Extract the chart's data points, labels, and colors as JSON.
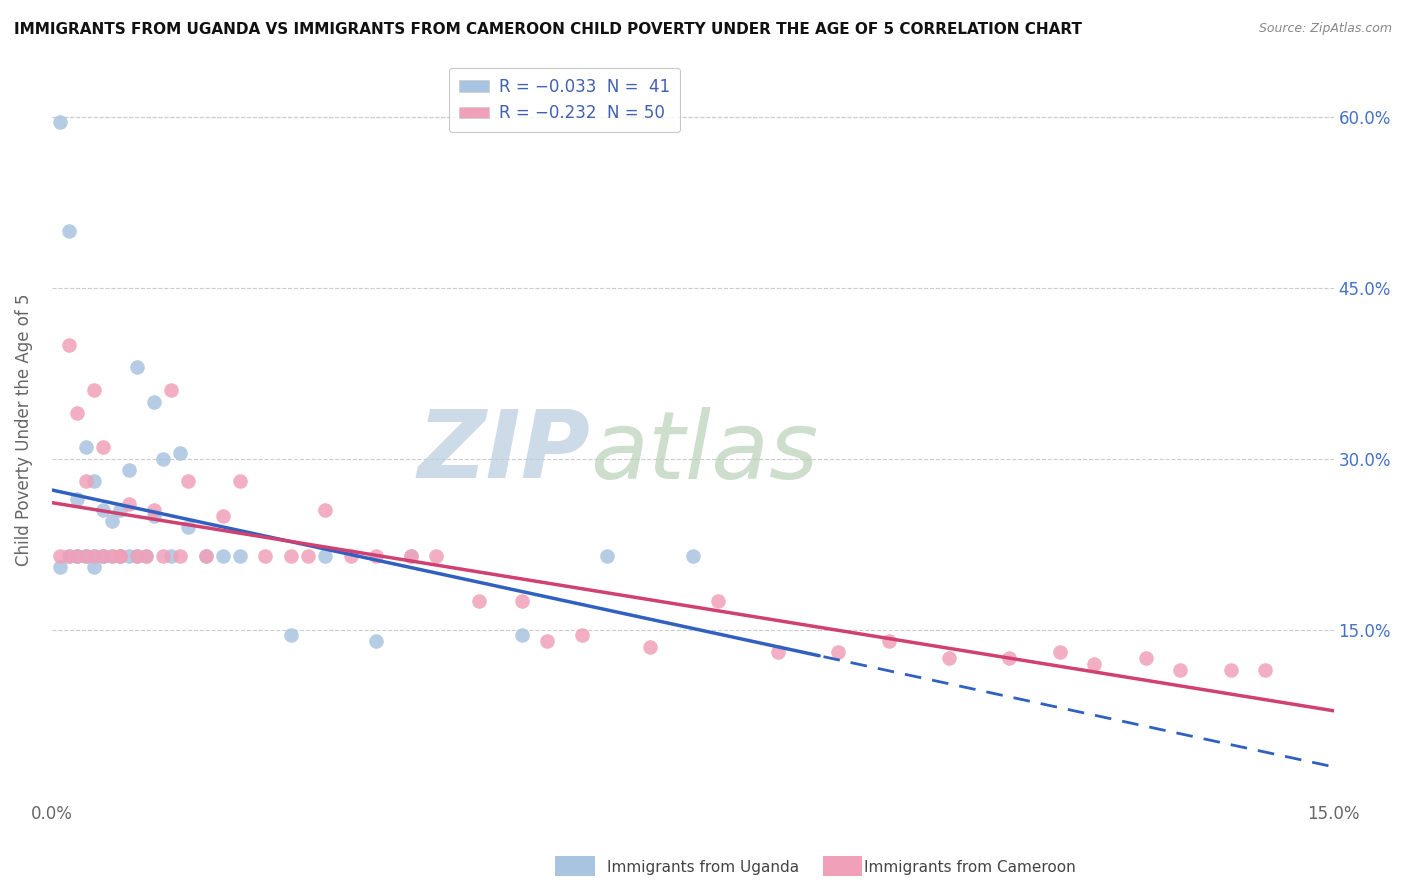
{
  "title": "IMMIGRANTS FROM UGANDA VS IMMIGRANTS FROM CAMEROON CHILD POVERTY UNDER THE AGE OF 5 CORRELATION CHART",
  "source": "Source: ZipAtlas.com",
  "ylabel": "Child Poverty Under the Age of 5",
  "xlim": [
    0.0,
    0.15
  ],
  "ylim": [
    0.0,
    0.65
  ],
  "color_uganda": "#a8c4e0",
  "color_cameroon": "#f0a0b8",
  "trendline_uganda_color": "#3060c0",
  "trendline_cameroon_color": "#d04070",
  "watermark_zip": "ZIP",
  "watermark_atlas": "atlas",
  "watermark_color_zip": "#b8cce0",
  "watermark_color_atlas": "#b8d0b8",
  "background_color": "#ffffff",
  "uganda_x": [
    0.001,
    0.001,
    0.002,
    0.002,
    0.003,
    0.003,
    0.003,
    0.004,
    0.004,
    0.004,
    0.005,
    0.005,
    0.005,
    0.006,
    0.006,
    0.006,
    0.007,
    0.007,
    0.008,
    0.008,
    0.009,
    0.009,
    0.01,
    0.01,
    0.011,
    0.012,
    0.012,
    0.013,
    0.014,
    0.015,
    0.016,
    0.018,
    0.02,
    0.022,
    0.028,
    0.032,
    0.038,
    0.042,
    0.055,
    0.065,
    0.075
  ],
  "uganda_y": [
    0.595,
    0.205,
    0.5,
    0.215,
    0.215,
    0.215,
    0.265,
    0.215,
    0.215,
    0.31,
    0.205,
    0.215,
    0.28,
    0.215,
    0.215,
    0.255,
    0.215,
    0.245,
    0.215,
    0.255,
    0.215,
    0.29,
    0.215,
    0.38,
    0.215,
    0.35,
    0.25,
    0.3,
    0.215,
    0.305,
    0.24,
    0.215,
    0.215,
    0.215,
    0.145,
    0.215,
    0.14,
    0.215,
    0.145,
    0.215,
    0.215
  ],
  "cameroon_x": [
    0.001,
    0.002,
    0.002,
    0.003,
    0.003,
    0.004,
    0.004,
    0.005,
    0.005,
    0.006,
    0.006,
    0.007,
    0.008,
    0.008,
    0.009,
    0.01,
    0.011,
    0.012,
    0.013,
    0.014,
    0.015,
    0.016,
    0.018,
    0.02,
    0.022,
    0.025,
    0.028,
    0.03,
    0.032,
    0.035,
    0.038,
    0.042,
    0.045,
    0.05,
    0.055,
    0.058,
    0.062,
    0.07,
    0.078,
    0.085,
    0.092,
    0.098,
    0.105,
    0.112,
    0.118,
    0.122,
    0.128,
    0.132,
    0.138,
    0.142
  ],
  "cameroon_y": [
    0.215,
    0.215,
    0.4,
    0.215,
    0.34,
    0.215,
    0.28,
    0.215,
    0.36,
    0.215,
    0.31,
    0.215,
    0.215,
    0.215,
    0.26,
    0.215,
    0.215,
    0.255,
    0.215,
    0.36,
    0.215,
    0.28,
    0.215,
    0.25,
    0.28,
    0.215,
    0.215,
    0.215,
    0.255,
    0.215,
    0.215,
    0.215,
    0.215,
    0.175,
    0.175,
    0.14,
    0.145,
    0.135,
    0.175,
    0.13,
    0.13,
    0.14,
    0.125,
    0.125,
    0.13,
    0.12,
    0.125,
    0.115,
    0.115,
    0.115
  ]
}
